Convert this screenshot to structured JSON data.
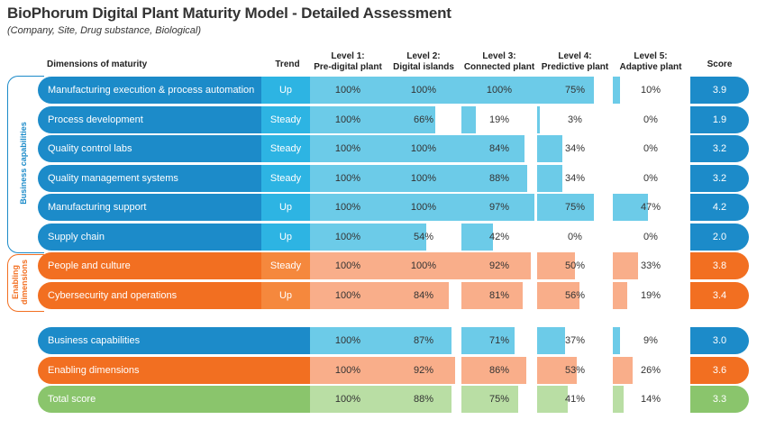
{
  "title": "BioPhorum Digital Plant Maturity Model - Detailed Assessment",
  "subtitle": "(Company, Site, Drug substance, Biological)",
  "headers": {
    "dimensions": "Dimensions of maturity",
    "trend": "Trend",
    "levels": [
      {
        "line1": "Level 1:",
        "line2": "Pre-digital plant"
      },
      {
        "line1": "Level 2:",
        "line2": "Digital islands"
      },
      {
        "line1": "Level 3:",
        "line2": "Connected plant"
      },
      {
        "line1": "Level 4:",
        "line2": "Predictive plant"
      },
      {
        "line1": "Level 5:",
        "line2": "Adaptive plant"
      }
    ],
    "score": "Score"
  },
  "groups": {
    "business": "Business capabilities",
    "enabling": "Enabling dimensions"
  },
  "colors": {
    "blue_dark": "#1c8bc9",
    "blue_light": "#6ccbe8",
    "orange_dark": "#f26f21",
    "orange_light": "#f9ae8a",
    "green_dark": "#8ac56c",
    "green_light": "#b9dea4",
    "trend_blue": "#2db4e3",
    "trend_orange": "#f5883d"
  },
  "chart_data": {
    "type": "table",
    "columns": [
      "Level 1",
      "Level 2",
      "Level 3",
      "Level 4",
      "Level 5"
    ],
    "rows": [
      {
        "name": "Manufacturing execution & process automation",
        "trend": "Up",
        "values": [
          100,
          100,
          100,
          75,
          10
        ],
        "labels": [
          "100%",
          "100%",
          "100%",
          "75%",
          "10%"
        ],
        "score": "3.9",
        "theme": "blue"
      },
      {
        "name": "Process development",
        "trend": "Steady",
        "values": [
          100,
          66,
          19,
          3,
          0
        ],
        "labels": [
          "100%",
          "66%",
          "19%",
          "3%",
          "0%"
        ],
        "score": "1.9",
        "theme": "blue"
      },
      {
        "name": "Quality control labs",
        "trend": "Steady",
        "values": [
          100,
          100,
          84,
          34,
          0
        ],
        "labels": [
          "100%",
          "100%",
          "84%",
          "34%",
          "0%"
        ],
        "score": "3.2",
        "theme": "blue"
      },
      {
        "name": "Quality management systems",
        "trend": "Steady",
        "values": [
          100,
          100,
          88,
          34,
          0
        ],
        "labels": [
          "100%",
          "100%",
          "88%",
          "34%",
          "0%"
        ],
        "score": "3.2",
        "theme": "blue"
      },
      {
        "name": "Manufacturing support",
        "trend": "Up",
        "values": [
          100,
          100,
          97,
          75,
          47
        ],
        "labels": [
          "100%",
          "100%",
          "97%",
          "75%",
          "47%"
        ],
        "score": "4.2",
        "theme": "blue"
      },
      {
        "name": "Supply chain",
        "trend": "Up",
        "values": [
          100,
          54,
          42,
          0,
          0
        ],
        "labels": [
          "100%",
          "54%",
          "42%",
          "0%",
          "0%"
        ],
        "score": "2.0",
        "theme": "blue"
      },
      {
        "name": "People and culture",
        "trend": "Steady",
        "values": [
          100,
          100,
          92,
          50,
          33
        ],
        "labels": [
          "100%",
          "100%",
          "92%",
          "50%",
          "33%"
        ],
        "score": "3.8",
        "theme": "orange"
      },
      {
        "name": "Cybersecurity and operations",
        "trend": "Up",
        "values": [
          100,
          84,
          81,
          56,
          19
        ],
        "labels": [
          "100%",
          "84%",
          "81%",
          "56%",
          "19%"
        ],
        "score": "3.4",
        "theme": "orange"
      }
    ],
    "summary": [
      {
        "name": "Business capabilities",
        "values": [
          100,
          87,
          71,
          37,
          9
        ],
        "labels": [
          "100%",
          "87%",
          "71%",
          "37%",
          "9%"
        ],
        "score": "3.0",
        "theme": "blue"
      },
      {
        "name": "Enabling dimensions",
        "values": [
          100,
          92,
          86,
          53,
          26
        ],
        "labels": [
          "100%",
          "92%",
          "86%",
          "53%",
          "26%"
        ],
        "score": "3.6",
        "theme": "orange"
      },
      {
        "name": "Total score",
        "values": [
          100,
          88,
          75,
          41,
          14
        ],
        "labels": [
          "100%",
          "88%",
          "75%",
          "41%",
          "14%"
        ],
        "score": "3.3",
        "theme": "green"
      }
    ]
  }
}
